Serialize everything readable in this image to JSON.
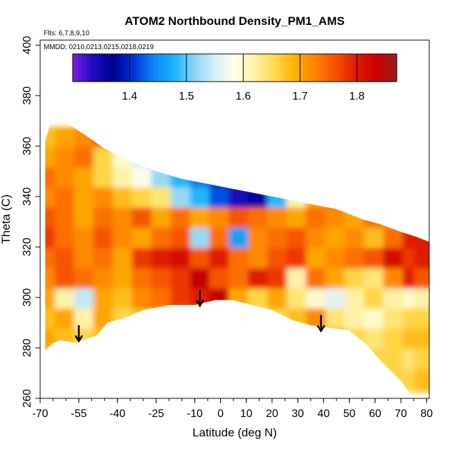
{
  "chart_data": {
    "type": "heatmap",
    "title": "ATOM2 Northbound Density_PM1_AMS",
    "xlabel": "Latitude (deg N)",
    "ylabel": "Theta (C)",
    "annotations": [
      "Flts: 6,7,8,9,10",
      "MMDD: 0210,0213,0215,0218,0219"
    ],
    "xlim": [
      -70,
      81
    ],
    "ylim": [
      260,
      402
    ],
    "x_ticks": [
      "-70",
      "-55",
      "-40",
      "-25",
      "-10",
      "0",
      "10",
      "20",
      "30",
      "40",
      "50",
      "60",
      "70",
      "80"
    ],
    "y_ticks": [
      "260",
      "280",
      "300",
      "320",
      "340",
      "360",
      "380",
      "400"
    ],
    "colorbar": {
      "range": [
        1.3,
        1.87
      ],
      "ticks": [
        "1.4",
        "1.5",
        "1.6",
        "1.7",
        "1.8"
      ],
      "colors": [
        "#7a1fe0",
        "#1d0bc2",
        "#00008f",
        "#0033d6",
        "#0a86f5",
        "#1ab4ff",
        "#8ad4f2",
        "#d6eefa",
        "#ffffe6",
        "#fff2a6",
        "#ffd94d",
        "#ffb000",
        "#ff8000",
        "#f55000",
        "#e01b00",
        "#cc0000",
        "#991c1c"
      ]
    },
    "arrows": [
      {
        "latitude": -55,
        "theta": 289
      },
      {
        "latitude": -8,
        "theta": 303
      },
      {
        "latitude": 39,
        "theta": 293
      }
    ],
    "region_boundary": [
      [
        -68,
        279
      ],
      [
        -65,
        282
      ],
      [
        -62,
        283
      ],
      [
        -56,
        282
      ],
      [
        -48,
        285
      ],
      [
        -44,
        290
      ],
      [
        -37,
        292
      ],
      [
        -30,
        295
      ],
      [
        -20,
        297
      ],
      [
        -10,
        297
      ],
      [
        -2,
        299
      ],
      [
        5,
        299
      ],
      [
        12,
        297
      ],
      [
        20,
        295
      ],
      [
        28,
        291
      ],
      [
        35,
        289
      ],
      [
        42,
        288
      ],
      [
        50,
        287
      ],
      [
        57,
        281
      ],
      [
        63,
        274
      ],
      [
        70,
        267
      ],
      [
        75,
        260
      ],
      [
        81,
        260
      ],
      [
        81,
        316
      ],
      [
        81,
        322
      ],
      [
        76,
        324
      ],
      [
        70,
        326
      ],
      [
        62,
        329
      ],
      [
        55,
        331
      ],
      [
        45,
        335
      ],
      [
        35,
        337
      ],
      [
        25,
        339
      ],
      [
        15,
        341
      ],
      [
        5,
        343
      ],
      [
        -5,
        345
      ],
      [
        -15,
        347
      ],
      [
        -25,
        350
      ],
      [
        -35,
        354
      ],
      [
        -45,
        359
      ],
      [
        -52,
        364
      ],
      [
        -58,
        368
      ],
      [
        -63,
        370
      ],
      [
        -66,
        369
      ],
      [
        -68,
        362
      ],
      [
        -68,
        279
      ]
    ],
    "grid_lat": [
      -67.5,
      -60,
      -52.5,
      -45,
      -37.5,
      -30,
      -22.5,
      -15,
      -7.5,
      0,
      7.5,
      15,
      22.5,
      30,
      37.5,
      45,
      52.5,
      60,
      67.5,
      75,
      79.5
    ],
    "grid_theta": [
      363,
      355,
      347,
      339,
      331,
      323,
      315,
      307,
      299,
      291,
      283,
      275,
      267
    ],
    "grid_values": [
      [
        1.68,
        1.7,
        1.72,
        1.76,
        1.64,
        1.6,
        1.56,
        1.52,
        1.5,
        1.52,
        1.56,
        1.58,
        1.6,
        1.62,
        1.64,
        1.66,
        1.68,
        1.7,
        1.72,
        1.74,
        1.74
      ],
      [
        1.7,
        1.72,
        1.74,
        1.66,
        1.6,
        1.55,
        1.52,
        1.48,
        1.44,
        1.4,
        1.42,
        1.46,
        1.5,
        1.54,
        1.58,
        1.62,
        1.66,
        1.7,
        1.72,
        1.74,
        1.74
      ],
      [
        1.74,
        1.72,
        1.7,
        1.66,
        1.62,
        1.58,
        1.52,
        1.48,
        1.44,
        1.4,
        1.36,
        1.38,
        1.5,
        1.58,
        1.64,
        1.7,
        1.72,
        1.74,
        1.74,
        1.74,
        1.74
      ],
      [
        1.72,
        1.74,
        1.7,
        1.72,
        1.68,
        1.66,
        1.64,
        1.52,
        1.48,
        1.42,
        1.34,
        1.36,
        1.48,
        1.62,
        1.7,
        1.74,
        1.72,
        1.7,
        1.72,
        1.74,
        1.74
      ],
      [
        1.76,
        1.74,
        1.7,
        1.74,
        1.72,
        1.76,
        1.7,
        1.74,
        1.7,
        1.72,
        1.76,
        1.74,
        1.72,
        1.7,
        1.74,
        1.72,
        1.7,
        1.74,
        1.72,
        1.7,
        1.74
      ],
      [
        1.78,
        1.74,
        1.72,
        1.76,
        1.72,
        1.7,
        1.74,
        1.76,
        1.52,
        1.74,
        1.46,
        1.72,
        1.74,
        1.76,
        1.72,
        1.7,
        1.72,
        1.68,
        1.74,
        1.8,
        1.8
      ],
      [
        1.74,
        1.76,
        1.72,
        1.74,
        1.7,
        1.78,
        1.8,
        1.82,
        1.76,
        1.8,
        1.74,
        1.72,
        1.76,
        1.78,
        1.7,
        1.72,
        1.74,
        1.76,
        1.82,
        1.78,
        1.8
      ],
      [
        1.72,
        1.76,
        1.74,
        1.72,
        1.7,
        1.74,
        1.76,
        1.78,
        1.84,
        1.76,
        1.74,
        1.8,
        1.78,
        1.62,
        1.74,
        1.7,
        1.66,
        1.64,
        1.72,
        1.8,
        1.76
      ],
      [
        1.7,
        1.62,
        1.54,
        1.7,
        1.68,
        1.72,
        1.74,
        1.78,
        1.8,
        1.84,
        1.7,
        1.66,
        1.7,
        1.64,
        1.6,
        1.56,
        1.62,
        1.66,
        1.62,
        1.6,
        1.62
      ],
      [
        1.68,
        1.7,
        1.62,
        1.7,
        1.66,
        1.68,
        1.7,
        1.68,
        1.7,
        1.68,
        1.66,
        1.64,
        1.66,
        1.68,
        1.72,
        1.64,
        1.62,
        1.6,
        1.64,
        1.66,
        1.66
      ],
      [
        1.7,
        1.68,
        1.66,
        1.68,
        1.66,
        1.68,
        1.66,
        1.68,
        1.66,
        1.68,
        1.66,
        1.64,
        1.66,
        1.68,
        1.66,
        1.7,
        1.66,
        1.64,
        1.66,
        1.68,
        1.68
      ],
      [
        1.66,
        1.66,
        1.64,
        1.66,
        1.64,
        1.66,
        1.64,
        1.66,
        1.64,
        1.66,
        1.64,
        1.64,
        1.64,
        1.66,
        1.64,
        1.66,
        1.64,
        1.66,
        1.66,
        1.64,
        1.66
      ],
      [
        1.64,
        1.64,
        1.64,
        1.64,
        1.64,
        1.64,
        1.64,
        1.64,
        1.64,
        1.64,
        1.64,
        1.64,
        1.64,
        1.64,
        1.64,
        1.64,
        1.64,
        1.64,
        1.66,
        1.66,
        1.68
      ]
    ]
  }
}
